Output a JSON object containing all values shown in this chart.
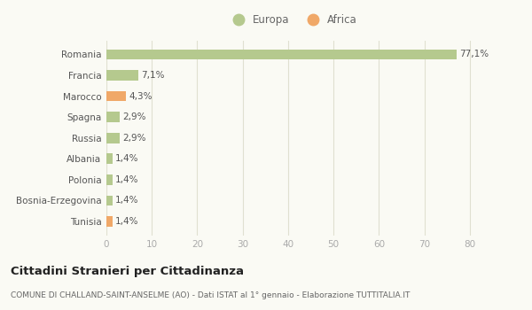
{
  "categories": [
    "Romania",
    "Francia",
    "Marocco",
    "Spagna",
    "Russia",
    "Albania",
    "Polonia",
    "Bosnia-Erzegovina",
    "Tunisia"
  ],
  "values": [
    77.1,
    7.1,
    4.3,
    2.9,
    2.9,
    1.4,
    1.4,
    1.4,
    1.4
  ],
  "labels": [
    "77,1%",
    "7,1%",
    "4,3%",
    "2,9%",
    "2,9%",
    "1,4%",
    "1,4%",
    "1,4%",
    "1,4%"
  ],
  "colors": [
    "#b5c98e",
    "#b5c98e",
    "#f0a868",
    "#b5c98e",
    "#b5c98e",
    "#b5c98e",
    "#b5c98e",
    "#b5c98e",
    "#f0a868"
  ],
  "legend_europa_color": "#b5c98e",
  "legend_africa_color": "#f0a868",
  "xlim": [
    0,
    82
  ],
  "xticks": [
    0,
    10,
    20,
    30,
    40,
    50,
    60,
    70,
    80
  ],
  "title": "Cittadini Stranieri per Cittadinanza",
  "subtitle": "COMUNE DI CHALLAND-SAINT-ANSELME (AO) - Dati ISTAT al 1° gennaio - Elaborazione TUTTITALIA.IT",
  "bg_color": "#fafaf4",
  "grid_color": "#e0e0d0",
  "bar_height": 0.5,
  "label_fontsize": 7.5,
  "ytick_fontsize": 7.5,
  "xtick_fontsize": 7.5
}
